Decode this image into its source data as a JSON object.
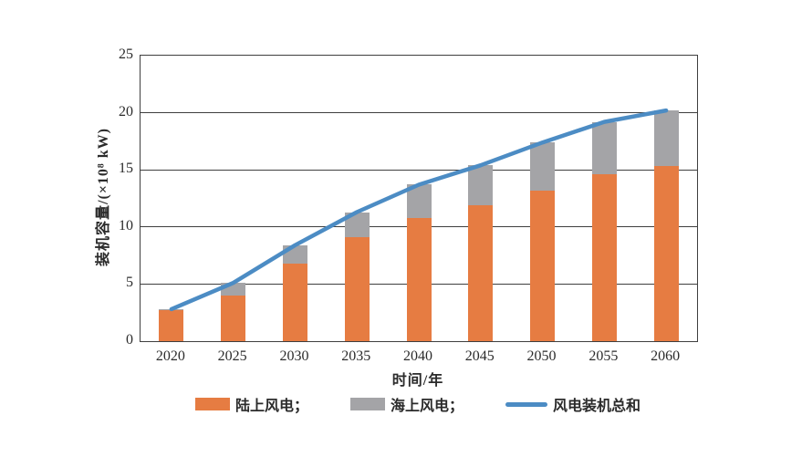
{
  "figure": {
    "y_axis": {
      "title": "装机容量/(×10⁸ kW)",
      "ticks": [
        "0",
        "5",
        "10",
        "15",
        "20",
        "25"
      ],
      "min": 0,
      "max": 25,
      "step": 5
    },
    "x_axis": {
      "title": "时间/年",
      "ticks": [
        "2020",
        "2025",
        "2030",
        "2035",
        "2040",
        "2045",
        "2050",
        "2055",
        "2060"
      ]
    },
    "legend": {
      "items": [
        {
          "label": "陆上风电；",
          "swatch": "rect",
          "color": "#E67C42"
        },
        {
          "label": "海上风电；",
          "swatch": "rect",
          "color": "#A4A4A7"
        },
        {
          "label": "风电装机总和",
          "swatch": "line",
          "color": "#4C8CC4"
        }
      ]
    },
    "colors": {
      "onshore_bar": "#E67C42",
      "offshore_bar": "#A4A4A7",
      "total_line": "#4C8CC4",
      "grid": "#3f3f3f"
    }
  },
  "chart_data": {
    "type": "stacked-bar+line",
    "title": "",
    "xlabel": "时间/年",
    "ylabel": "装机容量/(×10⁸ kW)",
    "categories": [
      "2020",
      "2025",
      "2030",
      "2035",
      "2040",
      "2045",
      "2050",
      "2055",
      "2060"
    ],
    "series": [
      {
        "name": "陆上风电",
        "type": "bar",
        "stack": true,
        "color": "#E67C42",
        "values": [
          2.7,
          4.0,
          6.8,
          9.1,
          10.8,
          11.9,
          13.2,
          14.6,
          15.3
        ]
      },
      {
        "name": "海上风电",
        "type": "bar",
        "stack": true,
        "color": "#A4A4A7",
        "values": [
          0.1,
          1.1,
          1.6,
          2.2,
          2.9,
          3.5,
          4.2,
          4.6,
          4.9
        ]
      },
      {
        "name": "风电装机总和",
        "type": "line",
        "color": "#4C8CC4",
        "values": [
          2.8,
          5.1,
          8.4,
          11.3,
          13.7,
          15.4,
          17.4,
          19.2,
          20.2
        ]
      }
    ],
    "ylim": [
      0,
      25
    ],
    "ytick_step": 5,
    "grid": true,
    "legend_position": "bottom"
  }
}
